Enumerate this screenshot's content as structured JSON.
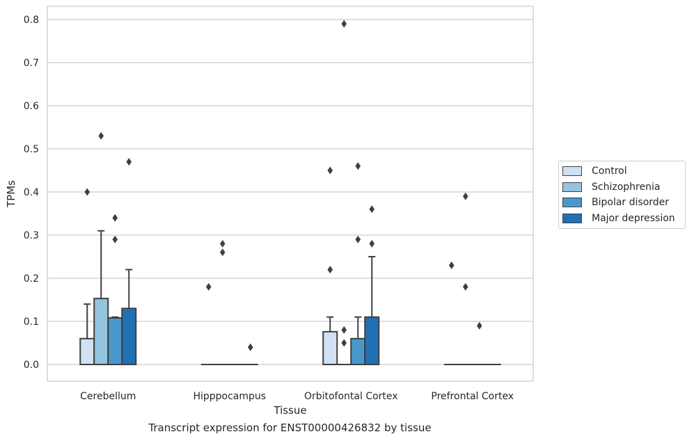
{
  "chart_data": {
    "type": "box",
    "xlabel": "Tissue",
    "ylabel": "TPMs",
    "caption": "Transcript expression for ENST00000426832 by tissue",
    "ylim": [
      -0.04,
      0.83
    ],
    "yticks": [
      0.0,
      0.1,
      0.2,
      0.3,
      0.4,
      0.5,
      0.6,
      0.7,
      0.8
    ],
    "ytick_labels": [
      "0.0",
      "0.1",
      "0.2",
      "0.3",
      "0.4",
      "0.5",
      "0.6",
      "0.7",
      "0.8"
    ],
    "grid": true,
    "legend_position": "right-center",
    "categories": [
      "Cerebellum",
      "Hipppocampus",
      "Orbitofontal Cortex",
      "Prefrontal Cortex"
    ],
    "series": [
      {
        "name": "Control",
        "color": "#d0e1f2",
        "boxes": [
          {
            "q1": 0.0,
            "median": 0.0,
            "q3": 0.06,
            "whisker_low": 0.0,
            "whisker_high": 0.14,
            "outliers": [
              0.4
            ]
          },
          {
            "q1": 0.0,
            "median": 0.0,
            "q3": 0.0,
            "whisker_low": 0.0,
            "whisker_high": 0.0,
            "outliers": [
              0.18
            ]
          },
          {
            "q1": 0.0,
            "median": 0.0,
            "q3": 0.076,
            "whisker_low": 0.0,
            "whisker_high": 0.11,
            "outliers": [
              0.22,
              0.45
            ]
          },
          {
            "q1": 0.0,
            "median": 0.0,
            "q3": 0.0,
            "whisker_low": 0.0,
            "whisker_high": 0.0,
            "outliers": [
              0.23
            ]
          }
        ]
      },
      {
        "name": "Schizophrenia",
        "color": "#94c4df",
        "boxes": [
          {
            "q1": 0.0,
            "median": 0.0,
            "q3": 0.153,
            "whisker_low": 0.0,
            "whisker_high": 0.31,
            "outliers": [
              0.53
            ]
          },
          {
            "q1": 0.0,
            "median": 0.0,
            "q3": 0.0,
            "whisker_low": 0.0,
            "whisker_high": 0.0,
            "outliers": [
              0.26,
              0.28
            ]
          },
          {
            "q1": 0.0,
            "median": 0.0,
            "q3": 0.0,
            "whisker_low": 0.0,
            "whisker_high": 0.0,
            "outliers": [
              0.05,
              0.08,
              0.79
            ]
          },
          {
            "q1": 0.0,
            "median": 0.0,
            "q3": 0.0,
            "whisker_low": 0.0,
            "whisker_high": 0.0,
            "outliers": [
              0.18,
              0.39
            ]
          }
        ]
      },
      {
        "name": "Bipolar disorder",
        "color": "#4a98c9",
        "boxes": [
          {
            "q1": 0.0,
            "median": 0.0,
            "q3": 0.108,
            "whisker_low": 0.0,
            "whisker_high": 0.11,
            "outliers": [
              0.29,
              0.34
            ]
          },
          {
            "q1": 0.0,
            "median": 0.0,
            "q3": 0.0,
            "whisker_low": 0.0,
            "whisker_high": 0.0,
            "outliers": []
          },
          {
            "q1": 0.0,
            "median": 0.0,
            "q3": 0.06,
            "whisker_low": 0.0,
            "whisker_high": 0.11,
            "outliers": [
              0.29,
              0.46
            ]
          },
          {
            "q1": 0.0,
            "median": 0.0,
            "q3": 0.0,
            "whisker_low": 0.0,
            "whisker_high": 0.0,
            "outliers": [
              0.09
            ]
          }
        ]
      },
      {
        "name": "Major depression",
        "color": "#2070b4",
        "boxes": [
          {
            "q1": 0.0,
            "median": 0.0,
            "q3": 0.13,
            "whisker_low": 0.0,
            "whisker_high": 0.22,
            "outliers": [
              0.47
            ]
          },
          {
            "q1": 0.0,
            "median": 0.0,
            "q3": 0.0,
            "whisker_low": 0.0,
            "whisker_high": 0.0,
            "outliers": [
              0.04
            ]
          },
          {
            "q1": 0.0,
            "median": 0.0,
            "q3": 0.11,
            "whisker_low": 0.0,
            "whisker_high": 0.25,
            "outliers": [
              0.28,
              0.36
            ]
          },
          {
            "q1": 0.0,
            "median": 0.0,
            "q3": 0.0,
            "whisker_low": 0.0,
            "whisker_high": 0.0,
            "outliers": []
          }
        ]
      }
    ]
  }
}
